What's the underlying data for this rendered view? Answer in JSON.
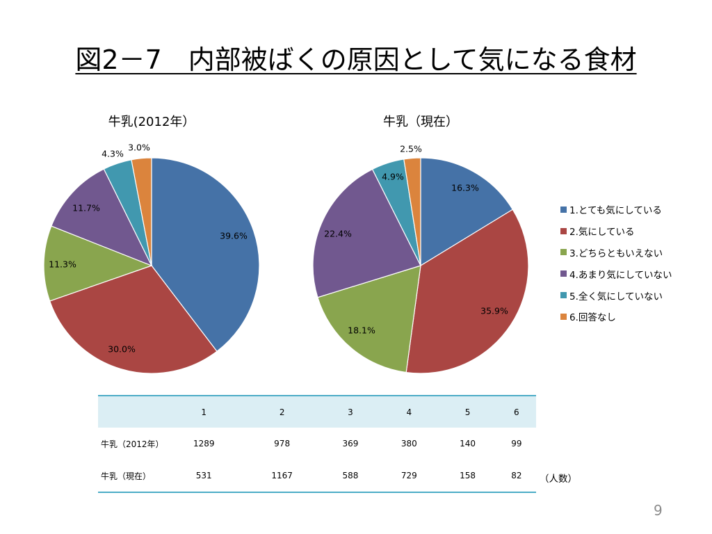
{
  "title": "図2－7　内部被ばくの原因として気になる食材",
  "page_number": "9",
  "chart_data": [
    {
      "type": "pie",
      "title": "牛乳(2012年）",
      "categories": [
        "1.とても気にしている",
        "2.気にしている",
        "3.どちらともいえない",
        "4.あまり気にしていない",
        "5.全く気にしていない",
        "6.回答なし"
      ],
      "values": [
        39.6,
        30.0,
        11.3,
        11.7,
        4.3,
        3.0
      ],
      "labels": [
        "39.6%",
        "30.0%",
        "11.3%",
        "11.7%",
        "4.3%",
        "3.0%"
      ]
    },
    {
      "type": "pie",
      "title": "牛乳（現在）",
      "categories": [
        "1.とても気にしている",
        "2.気にしている",
        "3.どちらともいえない",
        "4.あまり気にしていない",
        "5.全く気にしていない",
        "6.回答なし"
      ],
      "values": [
        16.3,
        35.9,
        18.1,
        22.4,
        4.9,
        2.5
      ],
      "labels": [
        "16.3%",
        "35.9%",
        "18.1%",
        "22.4%",
        "4.9%",
        "2.5%"
      ]
    }
  ],
  "legend": {
    "position": "right",
    "items": [
      "1.とても気にしている",
      "2.気にしている",
      "3.どちらともいえない",
      "4.あまり気にしていない",
      "5.全く気にしていない",
      "6.回答なし"
    ]
  },
  "colors": [
    "#4572a7",
    "#aa4643",
    "#89a54e",
    "#71588f",
    "#4198af",
    "#db843d"
  ],
  "table": {
    "headers": [
      "",
      "1",
      "2",
      "3",
      "4",
      "5",
      "6"
    ],
    "rows": [
      {
        "label": "牛乳（2012年）",
        "values": [
          "1289",
          "978",
          "369",
          "380",
          "140",
          "99"
        ]
      },
      {
        "label": "牛乳（現在）",
        "values": [
          "531",
          "1167",
          "588",
          "729",
          "158",
          "82"
        ]
      }
    ],
    "unit": "（人数）"
  }
}
